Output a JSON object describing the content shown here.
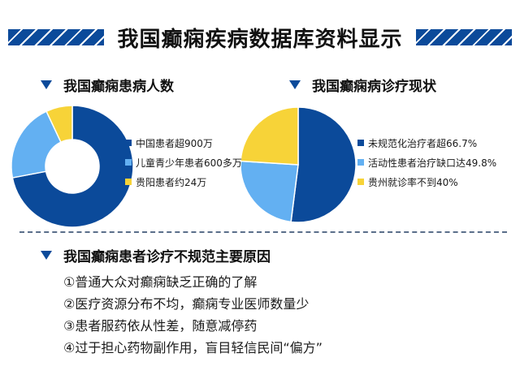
{
  "title": "我国癫痫疾病数据库资料显示",
  "colors": {
    "dark_blue": "#0b4a9a",
    "light_blue": "#63b0f2",
    "yellow": "#f7d338"
  },
  "sections": {
    "left_chart_title": "我国癫痫患病人数",
    "right_chart_title": "我国癫痫病诊疗现状",
    "reasons_title": "我国癫痫患者诊疗不规范主要原因"
  },
  "chart_data": [
    {
      "type": "pie",
      "variant": "donut",
      "title": "我国癫痫患病人数",
      "categories": [
        "中国患者超900万",
        "儿童青少年患者600多万",
        "贵阳患者约24万"
      ],
      "values": [
        72,
        21,
        7
      ],
      "colors": [
        "#0b4a9a",
        "#63b0f2",
        "#f7d338"
      ],
      "legend_position": "right"
    },
    {
      "type": "pie",
      "title": "我国癫痫病诊疗现状",
      "categories": [
        "未规范化治疗者超66.7%",
        "活动性患者治疗缺口达49.8%",
        "贵州就诊率不到40%"
      ],
      "values": [
        52,
        24,
        24
      ],
      "colors": [
        "#0b4a9a",
        "#63b0f2",
        "#f7d338"
      ],
      "legend_position": "right"
    }
  ],
  "reasons": [
    "①普通大众对癫痫缺乏正确的了解",
    "②医疗资源分布不均，癫痫专业医师数量少",
    "③患者服药依从性差，随意减停药",
    "④过于担心药物副作用，盲目轻信民间“偏方”"
  ]
}
